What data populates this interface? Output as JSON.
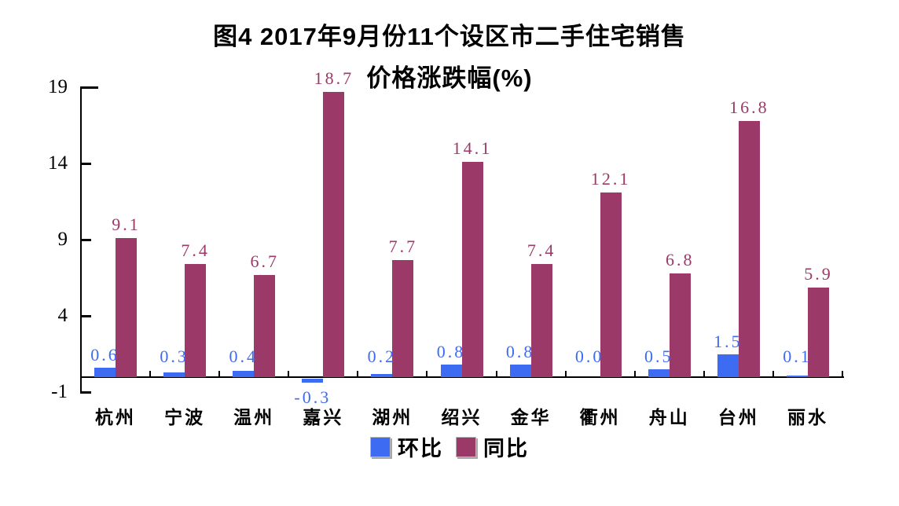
{
  "title": {
    "line1": "图4 2017年9月份11个设区市二手住宅销售",
    "line2": "价格涨跌幅(%)"
  },
  "legend": [
    {
      "label": "环比",
      "color": "#3D6BF2"
    },
    {
      "label": "同比",
      "color": "#9B3A68"
    }
  ],
  "colors": {
    "mom_blue": "#3D6BF2",
    "yoy_maroon": "#9B3A68",
    "axis": "#000000",
    "background": "#ffffff"
  },
  "chart_data": {
    "type": "bar",
    "title": "图4 2017年9月份11个设区市二手住宅销售价格涨跌幅(%)",
    "categories": [
      "杭州",
      "宁波",
      "温州",
      "嘉兴",
      "湖州",
      "绍兴",
      "金华",
      "衢州",
      "舟山",
      "台州",
      "丽水"
    ],
    "series": [
      {
        "name": "环比",
        "color": "#3D6BF2",
        "values": [
          0.6,
          0.3,
          0.4,
          -0.3,
          0.2,
          0.8,
          0.8,
          0.0,
          0.5,
          1.5,
          0.1
        ]
      },
      {
        "name": "同比",
        "color": "#9B3A68",
        "values": [
          9.1,
          7.4,
          6.7,
          18.7,
          7.7,
          14.1,
          7.4,
          12.1,
          6.8,
          16.8,
          5.9
        ]
      }
    ],
    "xlabel": "",
    "ylabel": "",
    "yticks": [
      -1,
      4,
      9,
      14,
      19
    ],
    "ylim": [
      -1,
      19
    ],
    "grid": false,
    "value_labels": true,
    "legend_position": "bottom"
  }
}
